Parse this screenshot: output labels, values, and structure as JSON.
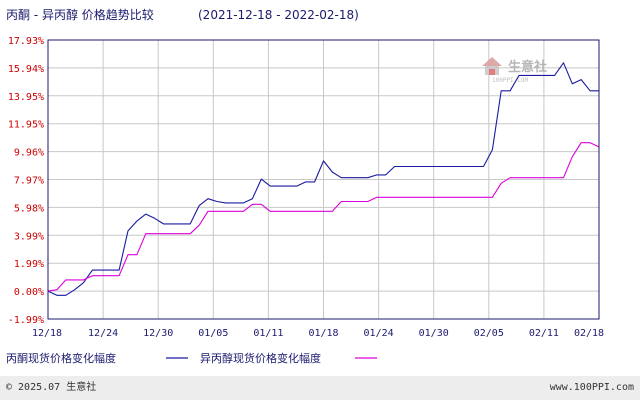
{
  "title": {
    "main": "丙酮 - 异丙醇 价格趋势比较",
    "range": "(2021-12-18 - 2022-02-18)"
  },
  "watermark": {
    "text": "生意社",
    "sub": "100PPI.COM"
  },
  "footer": {
    "left": "© 2025.07 生意社",
    "right": "www.100PPI.com"
  },
  "chart_data": {
    "type": "line",
    "x_ticks": [
      "12/18",
      "12/24",
      "12/30",
      "01/05",
      "01/11",
      "01/18",
      "01/24",
      "01/30",
      "02/05",
      "02/11",
      "02/18"
    ],
    "y_ticks": [
      "17.93%",
      "15.94%",
      "13.95%",
      "11.95%",
      "9.96%",
      "7.97%",
      "5.98%",
      "3.99%",
      "1.99%",
      "0.00%",
      "-1.99%"
    ],
    "ylim": [
      -1.99,
      17.93
    ],
    "xlim": [
      0,
      62
    ],
    "grid": true,
    "legend_position": "bottom",
    "series": [
      {
        "name": "丙酮现货价格变化幅度",
        "color": "#1a1aa0",
        "x": [
          0,
          1,
          2,
          3,
          4,
          5,
          6,
          7,
          8,
          9,
          10,
          11,
          12,
          13,
          14,
          15,
          16,
          17,
          18,
          19,
          20,
          21,
          22,
          23,
          24,
          25,
          26,
          27,
          28,
          29,
          30,
          31,
          32,
          33,
          34,
          35,
          36,
          37,
          38,
          39,
          40,
          41,
          42,
          43,
          44,
          45,
          46,
          47,
          48,
          49,
          50,
          51,
          52,
          53,
          54,
          55,
          56,
          57,
          58,
          59,
          60,
          61,
          62
        ],
        "y": [
          0.0,
          -0.3,
          -0.3,
          0.1,
          0.6,
          1.5,
          1.5,
          1.5,
          1.5,
          4.3,
          5.0,
          5.5,
          5.2,
          4.8,
          4.8,
          4.8,
          4.8,
          6.1,
          6.6,
          6.4,
          6.3,
          6.3,
          6.3,
          6.6,
          8.0,
          7.5,
          7.5,
          7.5,
          7.5,
          7.8,
          7.8,
          9.3,
          8.5,
          8.1,
          8.1,
          8.1,
          8.1,
          8.3,
          8.3,
          8.9,
          8.9,
          8.9,
          8.9,
          8.9,
          8.9,
          8.9,
          8.9,
          8.9,
          8.9,
          8.9,
          10.1,
          14.3,
          14.3,
          15.4,
          15.4,
          15.4,
          15.4,
          15.4,
          16.3,
          14.8,
          15.1,
          14.3,
          14.3
        ]
      },
      {
        "name": "异丙醇现货价格变化幅度",
        "color": "#dd00dd",
        "x": [
          0,
          1,
          2,
          3,
          4,
          5,
          6,
          7,
          8,
          9,
          10,
          11,
          12,
          13,
          14,
          15,
          16,
          17,
          18,
          19,
          20,
          21,
          22,
          23,
          24,
          25,
          26,
          27,
          28,
          29,
          30,
          31,
          32,
          33,
          34,
          35,
          36,
          37,
          38,
          39,
          40,
          41,
          42,
          43,
          44,
          45,
          46,
          47,
          48,
          49,
          50,
          51,
          52,
          53,
          54,
          55,
          56,
          57,
          58,
          59,
          60,
          61,
          62
        ],
        "y": [
          0.0,
          0.1,
          0.8,
          0.8,
          0.8,
          1.1,
          1.1,
          1.1,
          1.1,
          2.6,
          2.6,
          4.1,
          4.1,
          4.1,
          4.1,
          4.1,
          4.1,
          4.7,
          5.7,
          5.7,
          5.7,
          5.7,
          5.7,
          6.2,
          6.2,
          5.7,
          5.7,
          5.7,
          5.7,
          5.7,
          5.7,
          5.7,
          5.7,
          6.4,
          6.4,
          6.4,
          6.4,
          6.7,
          6.7,
          6.7,
          6.7,
          6.7,
          6.7,
          6.7,
          6.7,
          6.7,
          6.7,
          6.7,
          6.7,
          6.7,
          6.7,
          7.7,
          8.1,
          8.1,
          8.1,
          8.1,
          8.1,
          8.1,
          8.1,
          9.6,
          10.6,
          10.6,
          10.3
        ]
      }
    ]
  }
}
